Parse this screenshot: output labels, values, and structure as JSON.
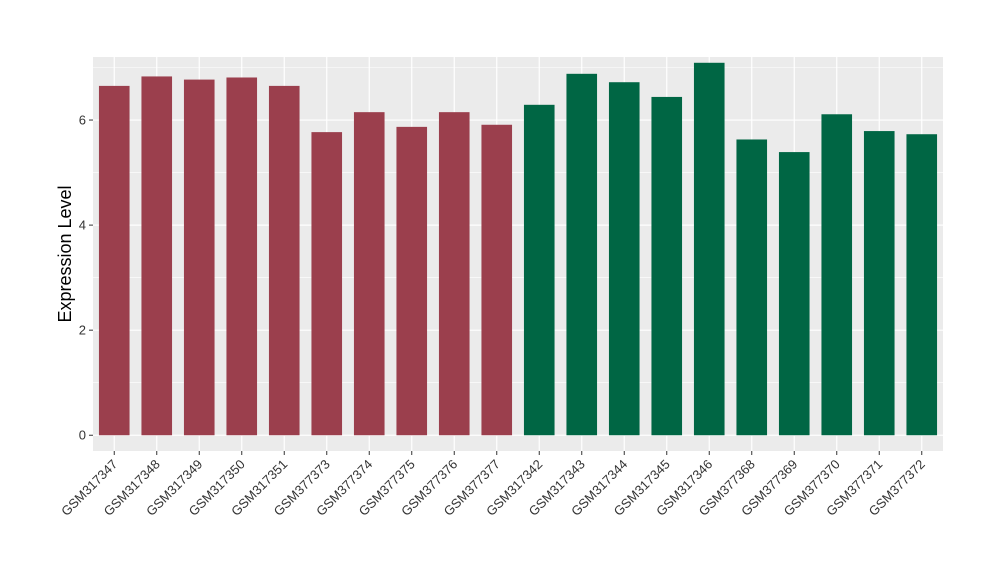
{
  "chart_data": {
    "type": "bar",
    "title": "",
    "xlabel": "",
    "ylabel": "Expression Level",
    "ylim": [
      -0.3,
      7.2
    ],
    "yticks": [
      0,
      2,
      4,
      6
    ],
    "grid": true,
    "legend": "none",
    "categories": [
      "GSM317347",
      "GSM317348",
      "GSM317349",
      "GSM317350",
      "GSM317351",
      "GSM377373",
      "GSM377374",
      "GSM377375",
      "GSM377376",
      "GSM377377",
      "GSM317342",
      "GSM317343",
      "GSM317344",
      "GSM317345",
      "GSM317346",
      "GSM377368",
      "GSM377369",
      "GSM377370",
      "GSM377371",
      "GSM377372"
    ],
    "values": [
      6.65,
      6.83,
      6.77,
      6.81,
      6.65,
      5.77,
      6.15,
      5.87,
      6.15,
      5.91,
      6.29,
      6.88,
      6.72,
      6.44,
      7.09,
      5.63,
      5.39,
      6.11,
      5.79,
      5.73
    ],
    "bar_colors": [
      "#9b3f4d",
      "#9b3f4d",
      "#9b3f4d",
      "#9b3f4d",
      "#9b3f4d",
      "#9b3f4d",
      "#9b3f4d",
      "#9b3f4d",
      "#9b3f4d",
      "#9b3f4d",
      "#006644",
      "#006644",
      "#006644",
      "#006644",
      "#006644",
      "#006644",
      "#006644",
      "#006644",
      "#006644",
      "#006644"
    ],
    "panel_color": "#ebebeb",
    "grid_color": "#ffffff"
  }
}
